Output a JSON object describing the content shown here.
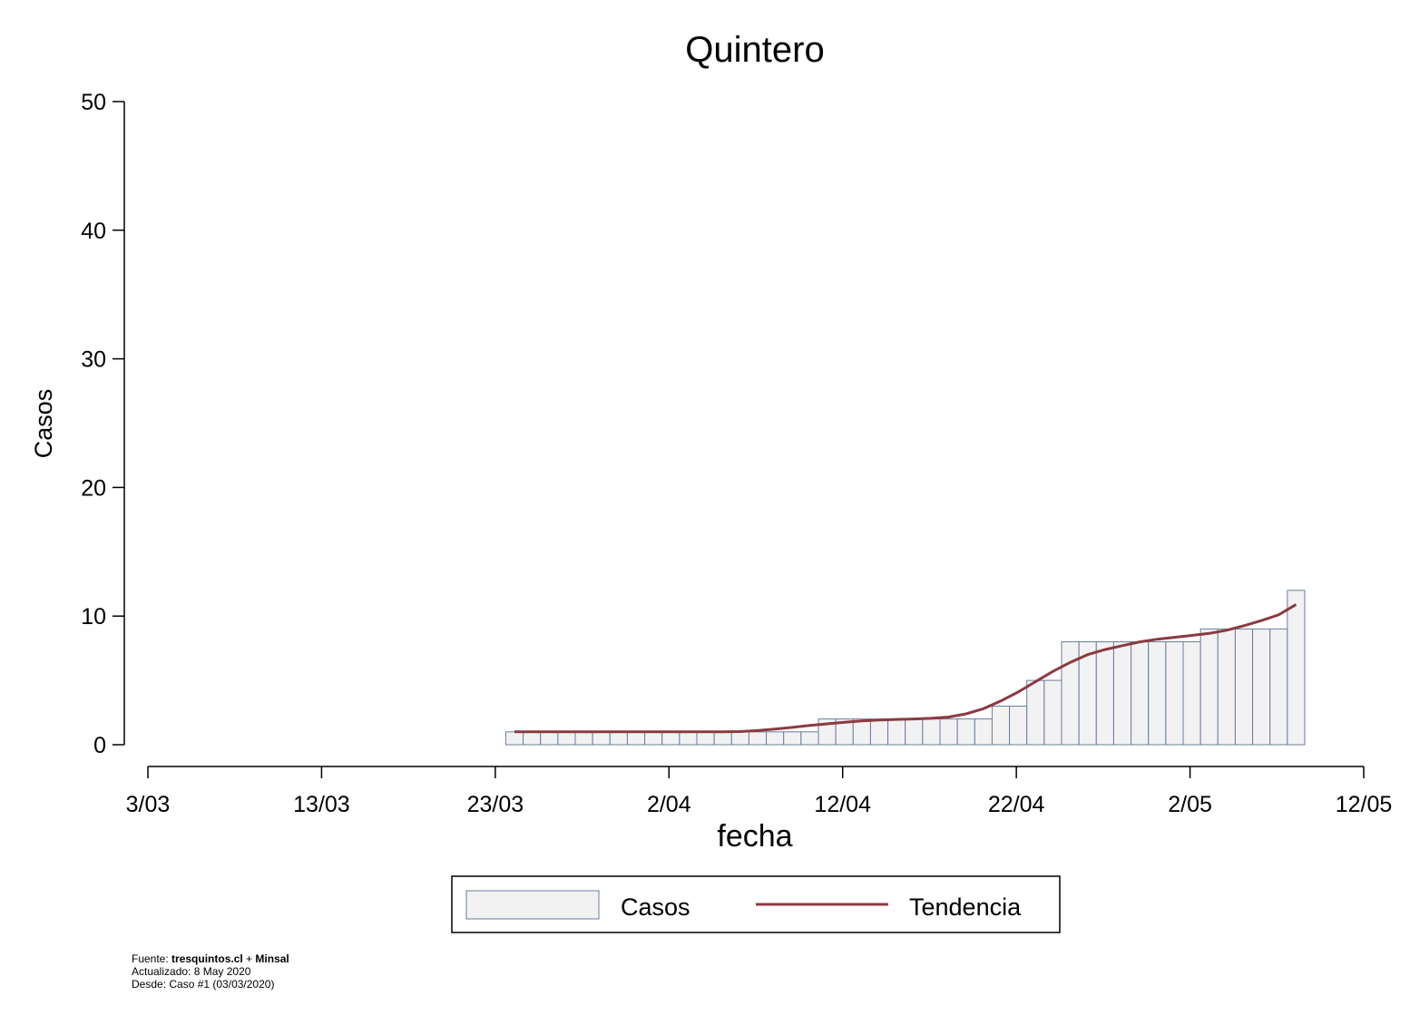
{
  "chart_data": {
    "type": "bar",
    "title": "Quintero",
    "xlabel": "fecha",
    "ylabel": "Casos",
    "ylim": [
      0,
      50
    ],
    "yticks": [
      0,
      10,
      20,
      30,
      40,
      50
    ],
    "xticks": [
      "3/03",
      "13/03",
      "23/03",
      "2/04",
      "12/04",
      "22/04",
      "2/05",
      "12/05"
    ],
    "x_start_label": "3/03",
    "x_end_label": "12/05",
    "first_bar_label": "24/03",
    "dates": [
      "24/03",
      "25/03",
      "26/03",
      "27/03",
      "28/03",
      "29/03",
      "30/03",
      "31/03",
      "1/04",
      "2/04",
      "3/04",
      "4/04",
      "5/04",
      "6/04",
      "7/04",
      "8/04",
      "9/04",
      "10/04",
      "11/04",
      "12/04",
      "13/04",
      "14/04",
      "15/04",
      "16/04",
      "17/04",
      "18/04",
      "19/04",
      "20/04",
      "21/04",
      "22/04",
      "23/04",
      "24/04",
      "25/04",
      "26/04",
      "27/04",
      "28/04",
      "29/04",
      "30/04",
      "1/05",
      "2/05",
      "3/05",
      "4/05",
      "5/05",
      "6/05",
      "7/05",
      "8/05"
    ],
    "series": [
      {
        "name": "Casos",
        "kind": "bar",
        "fill": "#f2f2f2",
        "stroke": "#6a7d9c",
        "values": [
          1,
          1,
          1,
          1,
          1,
          1,
          1,
          1,
          1,
          1,
          1,
          1,
          1,
          1,
          1,
          1,
          1,
          1,
          2,
          2,
          2,
          2,
          2,
          2,
          2,
          2,
          2,
          2,
          3,
          3,
          5,
          5,
          8,
          8,
          8,
          8,
          8,
          8,
          8,
          8,
          9,
          9,
          9,
          9,
          9,
          12
        ]
      },
      {
        "name": "Tendencia",
        "kind": "line",
        "color": "#8b3a42",
        "values": [
          1,
          1,
          1,
          1,
          1,
          1,
          1,
          1,
          1,
          1,
          1,
          1,
          1,
          1.02,
          1.1,
          1.22,
          1.35,
          1.5,
          1.62,
          1.75,
          1.85,
          1.92,
          1.97,
          2.0,
          2.05,
          2.15,
          2.4,
          2.8,
          3.4,
          4.1,
          4.9,
          5.7,
          6.4,
          7.0,
          7.4,
          7.7,
          8.0,
          8.2,
          8.35,
          8.5,
          8.65,
          8.9,
          9.25,
          9.65,
          10.1,
          10.9
        ]
      }
    ],
    "legend": {
      "position": "bottom",
      "items": [
        "Casos",
        "Tendencia"
      ]
    }
  },
  "footer": {
    "source_prefix": "Fuente: ",
    "source_site": "tresquintos.cl",
    "source_sep": " + ",
    "source_org": "Minsal",
    "updated": "Actualizado: 8 May 2020",
    "since": "Desde: Caso #1  (03/03/2020)"
  }
}
